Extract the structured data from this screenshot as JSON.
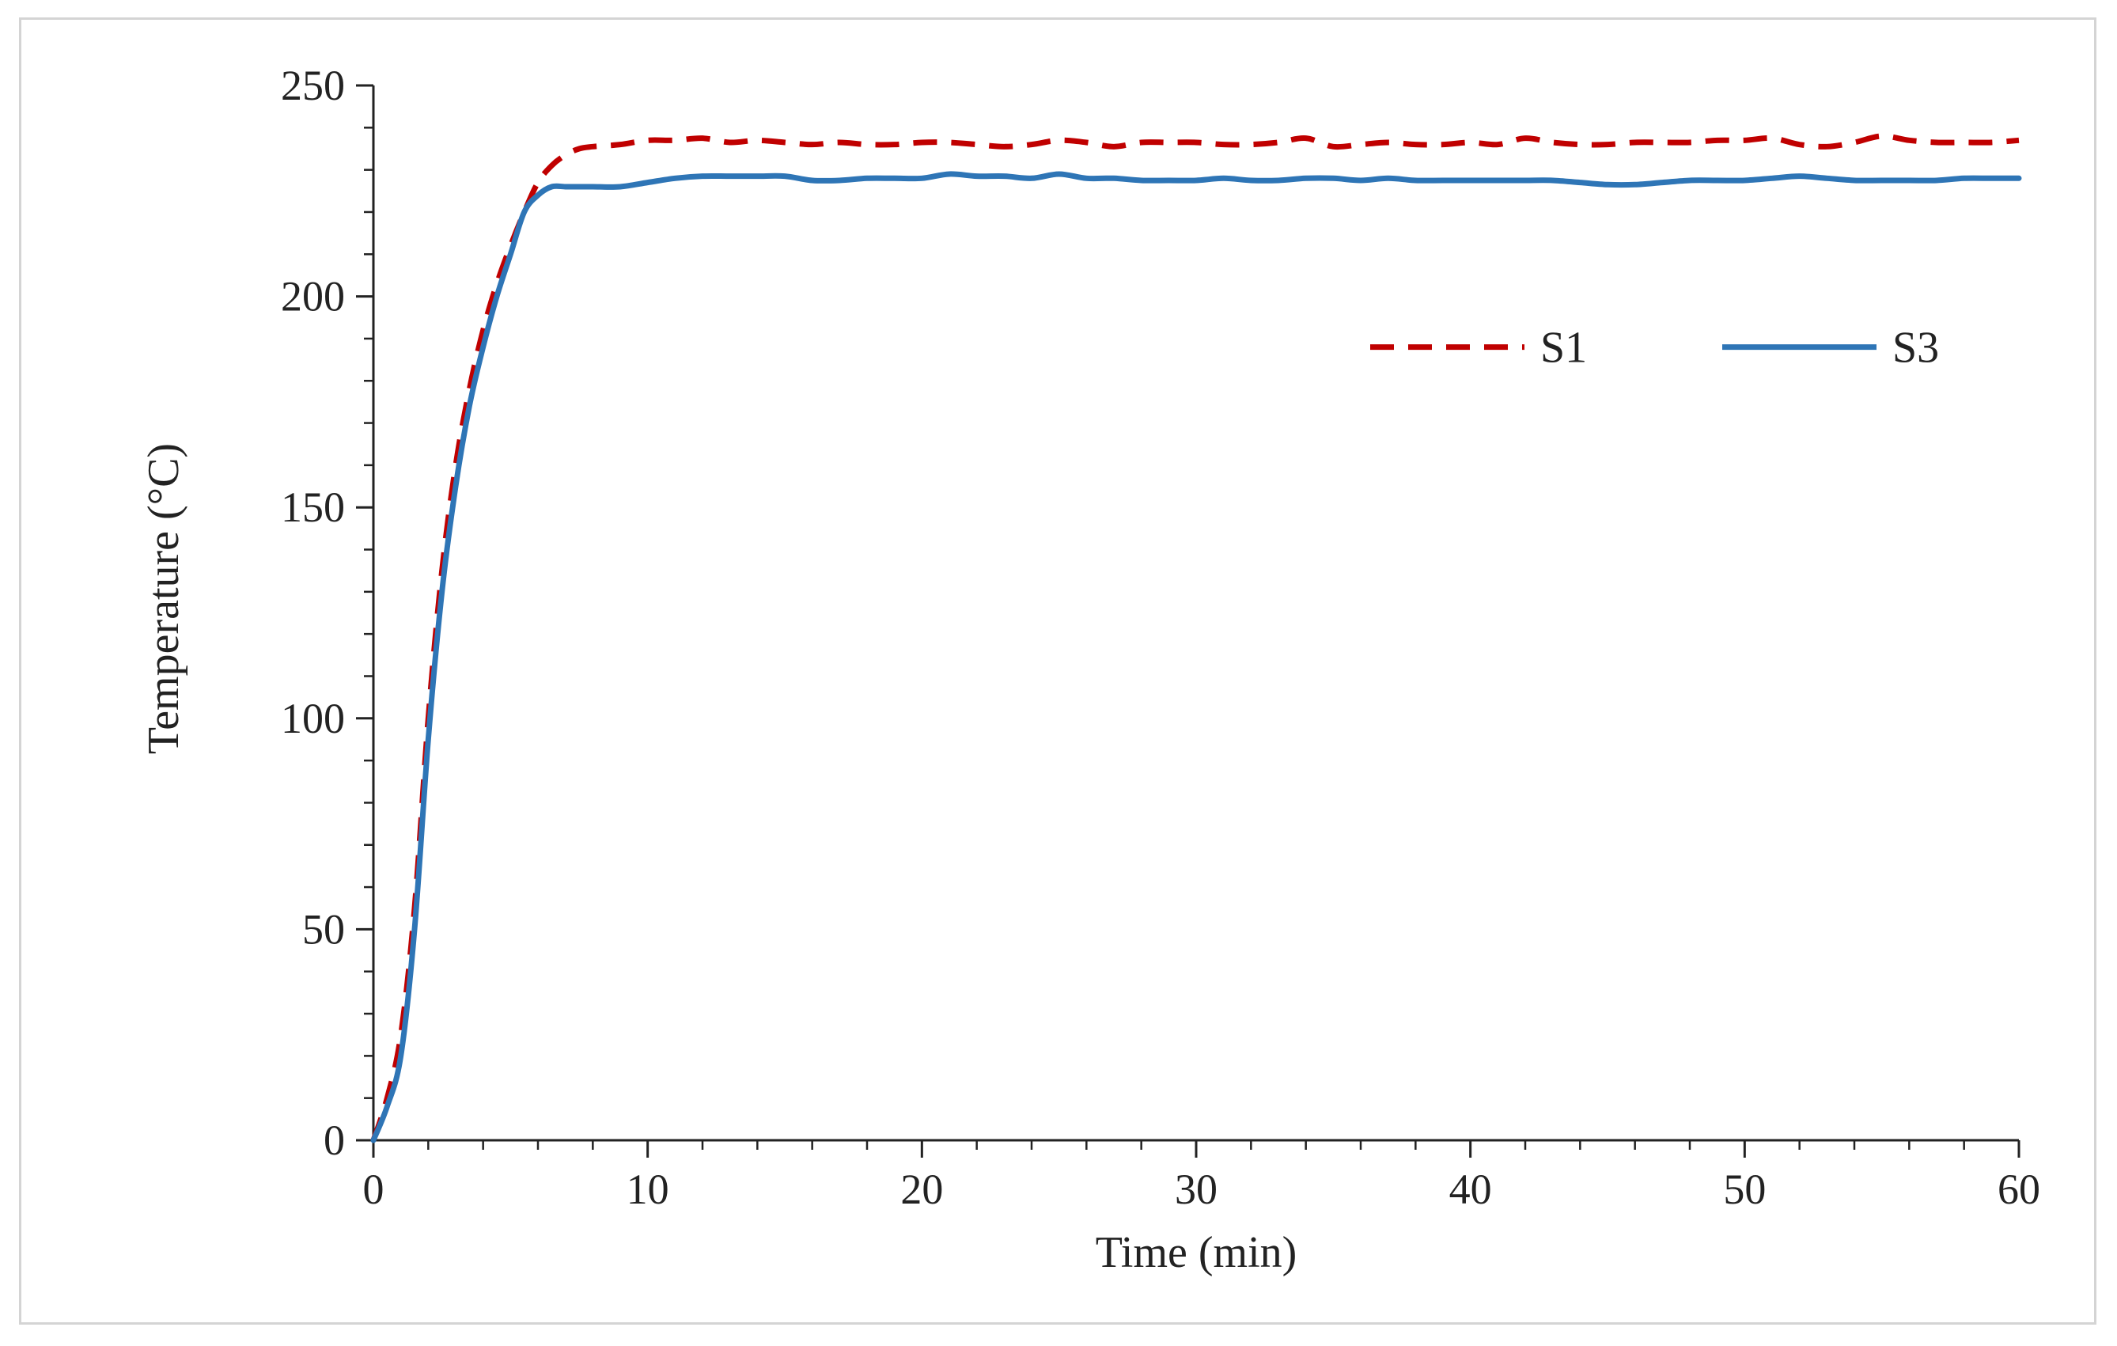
{
  "chart_data": {
    "type": "line",
    "title": "",
    "xlabel": "Time (min)",
    "ylabel": "Temperature (°C)",
    "xlim": [
      0,
      60
    ],
    "ylim": [
      0,
      250
    ],
    "xticks": [
      0,
      10,
      20,
      30,
      40,
      50,
      60
    ],
    "yticks": [
      0,
      50,
      100,
      150,
      200,
      250
    ],
    "x_minor_step": 2,
    "y_minor_step": 10,
    "grid": false,
    "legend_position": "upper-right",
    "series": [
      {
        "name": "S1",
        "color": "#c00000",
        "style": "dashed",
        "x": [
          0,
          0.5,
          1,
          1.5,
          2,
          2.5,
          3,
          3.5,
          4,
          4.5,
          5,
          5.5,
          6,
          6.5,
          7,
          7.5,
          8,
          9,
          10,
          11,
          12,
          13,
          14,
          15,
          16,
          17,
          18,
          19,
          20,
          21,
          22,
          23,
          24,
          25,
          26,
          27,
          28,
          29,
          30,
          31,
          32,
          33,
          34,
          35,
          36,
          37,
          38,
          39,
          40,
          41,
          42,
          43,
          44,
          45,
          46,
          47,
          48,
          49,
          50,
          51,
          52,
          53,
          54,
          55,
          56,
          57,
          58,
          59,
          60
        ],
        "y": [
          0,
          10,
          25,
          55,
          100,
          135,
          160,
          178,
          192,
          203,
          212,
          220,
          227,
          231,
          233.5,
          235,
          235.5,
          236,
          237,
          237,
          237.5,
          236.5,
          237,
          236.5,
          236,
          236.5,
          236,
          236,
          236.5,
          236.5,
          236,
          235.5,
          236,
          237,
          236.5,
          235.5,
          236.5,
          236.5,
          236.5,
          236,
          236,
          236.5,
          237.5,
          235.5,
          236,
          236.5,
          236,
          236,
          236.5,
          236,
          237.5,
          236.5,
          236,
          236,
          236.5,
          236.5,
          236.5,
          237,
          237,
          237.5,
          236,
          235.5,
          236.5,
          238,
          237,
          236.5,
          236.5,
          236.5,
          237
        ]
      },
      {
        "name": "S3",
        "color": "#2e75b6",
        "style": "solid",
        "x": [
          0,
          0.5,
          1,
          1.5,
          2,
          2.5,
          3,
          3.5,
          4,
          4.5,
          5,
          5.5,
          6,
          6.5,
          7,
          7.5,
          8,
          9,
          10,
          11,
          12,
          13,
          14,
          15,
          16,
          17,
          18,
          19,
          20,
          21,
          22,
          23,
          24,
          25,
          26,
          27,
          28,
          29,
          30,
          31,
          32,
          33,
          34,
          35,
          36,
          37,
          38,
          39,
          40,
          41,
          42,
          43,
          44,
          45,
          46,
          47,
          48,
          49,
          50,
          51,
          52,
          53,
          54,
          55,
          56,
          57,
          58,
          59,
          60
        ],
        "y": [
          0,
          8,
          20,
          50,
          95,
          130,
          155,
          174,
          188,
          200,
          210,
          220,
          224,
          226,
          226,
          226,
          226,
          226,
          227,
          228,
          228.5,
          228.5,
          228.5,
          228.5,
          227.5,
          227.5,
          228,
          228,
          228,
          229,
          228.5,
          228.5,
          228,
          229,
          228,
          228,
          227.5,
          227.5,
          227.5,
          228,
          227.5,
          227.5,
          228,
          228,
          227.5,
          228,
          227.5,
          227.5,
          227.5,
          227.5,
          227.5,
          227.5,
          227,
          226.5,
          226.5,
          227,
          227.5,
          227.5,
          227.5,
          228,
          228.5,
          228,
          227.5,
          227.5,
          227.5,
          227.5,
          228,
          228,
          228
        ]
      }
    ]
  }
}
